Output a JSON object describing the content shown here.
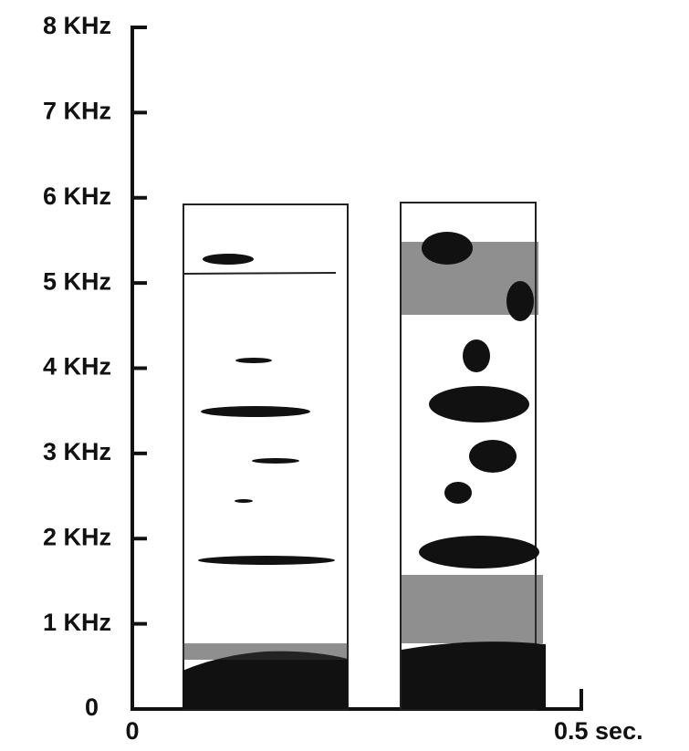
{
  "chart_data": {
    "type": "spectrogram",
    "xlim": [
      0,
      0.5
    ],
    "xticks": [
      0,
      {
        "value": 0.5,
        "label": "0.5 sec."
      }
    ],
    "ylim": [
      0,
      8
    ],
    "yticks": [
      0,
      {
        "value": 1,
        "label": "1 KHz"
      },
      {
        "value": 2,
        "label": "2 KHz"
      },
      {
        "value": 3,
        "label": "3 KHz"
      },
      {
        "value": 4,
        "label": "4 KHz"
      },
      {
        "value": 5,
        "label": "5 KHz"
      },
      {
        "value": 6,
        "label": "6 KHz"
      },
      {
        "value": 7,
        "label": "7 KHz"
      },
      {
        "value": 8,
        "label": "8 KHz"
      }
    ]
  }
}
